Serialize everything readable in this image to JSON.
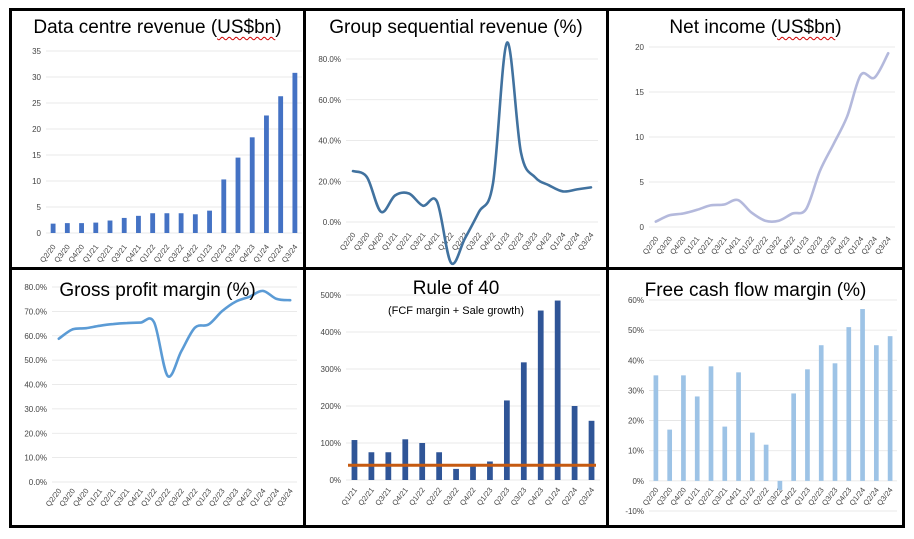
{
  "chart_data": [
    {
      "id": "dc_revenue",
      "type": "bar",
      "title": "Data centre revenue (US$bn)",
      "title_parts": [
        "Data centre revenue (",
        "US$bn",
        ")"
      ],
      "categories": [
        "Q2/20",
        "Q3/20",
        "Q4/20",
        "Q1/21",
        "Q2/21",
        "Q3/21",
        "Q4/21",
        "Q1/22",
        "Q2/22",
        "Q3/22",
        "Q4/22",
        "Q1/23",
        "Q2/23",
        "Q3/23",
        "Q4/23",
        "Q1/24",
        "Q2/24",
        "Q3/24"
      ],
      "values": [
        1.8,
        1.9,
        1.9,
        2.0,
        2.4,
        2.9,
        3.3,
        3.8,
        3.8,
        3.8,
        3.6,
        4.3,
        10.3,
        14.5,
        18.4,
        22.6,
        26.3,
        30.8
      ],
      "ylim": [
        0,
        35
      ],
      "yticks": [
        "0",
        "5",
        "10",
        "15",
        "20",
        "25",
        "30",
        "35"
      ],
      "color": "#4472c4",
      "grid": true
    },
    {
      "id": "seq_revenue",
      "type": "line",
      "title": "Group sequential revenue (%)",
      "categories": [
        "Q2/20",
        "Q3/20",
        "Q4/20",
        "Q1/21",
        "Q2/21",
        "Q3/21",
        "Q4/21",
        "Q1/22",
        "Q2/22",
        "Q3/22",
        "Q4/22",
        "Q1/23",
        "Q2/23",
        "Q3/23",
        "Q4/23",
        "Q1/24",
        "Q2/24",
        "Q3/24"
      ],
      "values": [
        25,
        22,
        5,
        13,
        14,
        8,
        10,
        -20,
        -8,
        5,
        19,
        88,
        34,
        22,
        18,
        15,
        16,
        17
      ],
      "ylim": [
        -20,
        80
      ],
      "yticks": [
        "0.0%",
        "20.0%",
        "40.0%",
        "60.0%",
        "80.0%"
      ],
      "ytick_values": [
        0,
        20,
        40,
        60,
        80
      ],
      "color": "#41729f",
      "grid": true
    },
    {
      "id": "net_income",
      "type": "line",
      "title": "Net income (US$bn)",
      "title_parts": [
        "Net income (",
        "US$bn",
        ")"
      ],
      "categories": [
        "Q2/20",
        "Q3/20",
        "Q4/20",
        "Q1/21",
        "Q2/21",
        "Q3/21",
        "Q4/21",
        "Q1/22",
        "Q2/22",
        "Q3/22",
        "Q4/22",
        "Q1/23",
        "Q2/23",
        "Q3/23",
        "Q4/23",
        "Q1/24",
        "Q2/24",
        "Q3/24"
      ],
      "values": [
        0.6,
        1.3,
        1.5,
        1.9,
        2.4,
        2.5,
        3.0,
        1.6,
        0.7,
        0.7,
        1.5,
        2.0,
        6.2,
        9.2,
        12.3,
        16.9,
        16.6,
        19.3
      ],
      "ylim": [
        0,
        20
      ],
      "yticks": [
        "0",
        "5",
        "10",
        "15",
        "20"
      ],
      "color": "#b4b9dc",
      "grid": true
    },
    {
      "id": "gross_margin",
      "type": "line",
      "title": "Gross profit margin (%)",
      "categories": [
        "Q2/20",
        "Q3/20",
        "Q4/20",
        "Q1/21",
        "Q2/21",
        "Q3/21",
        "Q4/21",
        "Q1/22",
        "Q2/22",
        "Q3/22",
        "Q4/22",
        "Q1/23",
        "Q2/23",
        "Q3/23",
        "Q4/23",
        "Q1/24",
        "Q2/24",
        "Q3/24"
      ],
      "values": [
        58.8,
        62.6,
        63.1,
        64.1,
        64.8,
        65.2,
        65.4,
        65.5,
        43.5,
        53.6,
        63.3,
        64.6,
        70.1,
        74.0,
        76.0,
        78.4,
        75.1,
        74.6
      ],
      "ylim": [
        0,
        80
      ],
      "yticks": [
        "0.0%",
        "10.0%",
        "20.0%",
        "30.0%",
        "40.0%",
        "50.0%",
        "60.0%",
        "70.0%",
        "80.0%"
      ],
      "color": "#5b9bd5",
      "grid": true
    },
    {
      "id": "rule_of_40",
      "type": "bar",
      "title": "Rule of 40",
      "subtitle": "(FCF margin + Sale growth)",
      "categories": [
        "Q1/21",
        "Q2/21",
        "Q3/21",
        "Q4/21",
        "Q1/22",
        "Q2/22",
        "Q3/22",
        "Q4/22",
        "Q1/23",
        "Q2/23",
        "Q3/23",
        "Q4/23",
        "Q1/24",
        "Q2/24",
        "Q3/24"
      ],
      "values": [
        108,
        75,
        75,
        110,
        100,
        75,
        30,
        40,
        50,
        215,
        318,
        458,
        485,
        200,
        160
      ],
      "reference_line": 40,
      "ylim": [
        0,
        500
      ],
      "yticks": [
        "0%",
        "100%",
        "200%",
        "300%",
        "400%",
        "500%"
      ],
      "color": "#2f5597",
      "reference_color": "#c55a11",
      "grid": true
    },
    {
      "id": "fcf_margin",
      "type": "bar",
      "title": "Free cash flow margin (%)",
      "categories": [
        "Q2/20",
        "Q3/20",
        "Q4/20",
        "Q1/21",
        "Q2/21",
        "Q3/21",
        "Q4/21",
        "Q1/22",
        "Q2/22",
        "Q3/22",
        "Q4/22",
        "Q1/23",
        "Q2/23",
        "Q3/23",
        "Q4/23",
        "Q1/24",
        "Q2/24",
        "Q3/24"
      ],
      "values": [
        35,
        17,
        35,
        28,
        38,
        18,
        36,
        16,
        12,
        -3,
        29,
        37,
        45,
        39,
        51,
        57,
        45,
        48
      ],
      "ylim": [
        -10,
        60
      ],
      "yticks": [
        "-10%",
        "0%",
        "10%",
        "20%",
        "30%",
        "40%",
        "50%",
        "60%"
      ],
      "color": "#9dc3e6",
      "grid": true
    }
  ]
}
